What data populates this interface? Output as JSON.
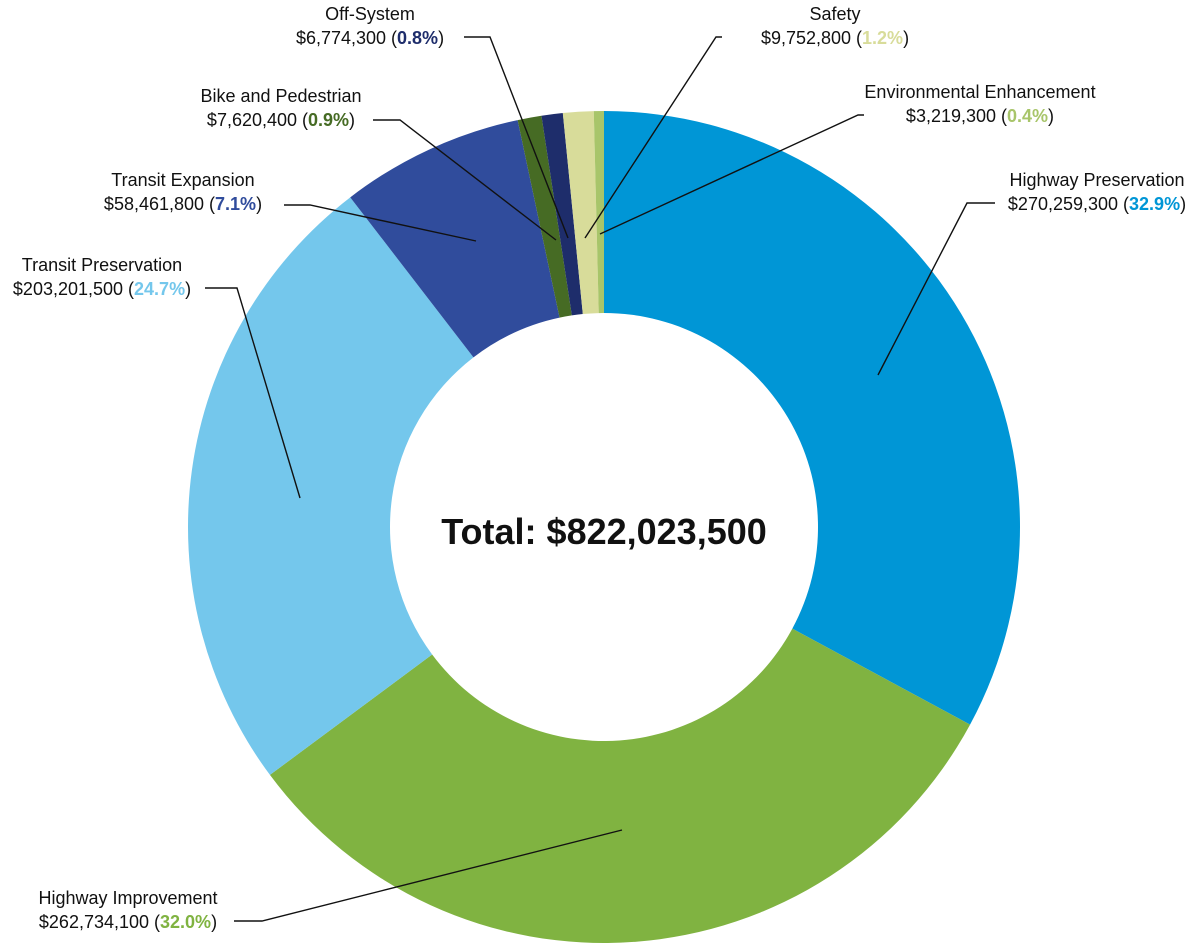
{
  "chart_data": {
    "type": "pie",
    "variant": "donut",
    "center_label": "Total: $822,023,500",
    "slices": [
      {
        "name": "Highway Preservation",
        "amount": "$270,259,300",
        "percent": "32.9%",
        "value": 270259300,
        "color": "#0096d6"
      },
      {
        "name": "Highway Improvement",
        "amount": "$262,734,100",
        "percent": "32.0%",
        "value": 262734100,
        "color": "#80b341"
      },
      {
        "name": "Transit Preservation",
        "amount": "$203,201,500",
        "percent": "24.7%",
        "value": 203201500,
        "color": "#74c7ec"
      },
      {
        "name": "Transit Expansion",
        "amount": "$58,461,800",
        "percent": "7.1%",
        "value": 58461800,
        "color": "#304c9c"
      },
      {
        "name": "Bike and Pedestrian",
        "amount": "$7,620,400",
        "percent": "0.9%",
        "value": 7620400,
        "color": "#466b24"
      },
      {
        "name": "Off-System",
        "amount": "$6,774,300",
        "percent": "0.8%",
        "value": 6774300,
        "color": "#1e2d6b"
      },
      {
        "name": "Safety",
        "amount": "$9,752,800",
        "percent": "1.2%",
        "value": 9752800,
        "color": "#d8dc9a"
      },
      {
        "name": "Environmental Enhancement",
        "amount": "$3,219,300",
        "percent": "0.4%",
        "value": 3219300,
        "color": "#a8c56a"
      }
    ]
  }
}
